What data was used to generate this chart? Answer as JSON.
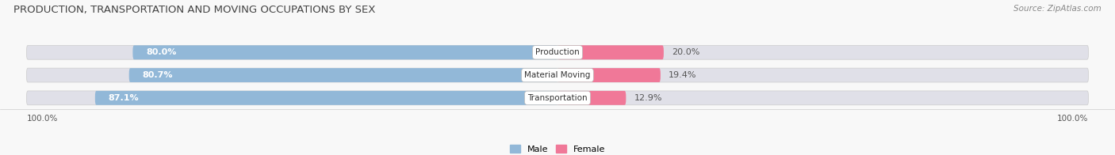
{
  "title": "PRODUCTION, TRANSPORTATION AND MOVING OCCUPATIONS BY SEX",
  "source": "Source: ZipAtlas.com",
  "categories": [
    "Transportation",
    "Material Moving",
    "Production"
  ],
  "male_pct": [
    87.1,
    80.7,
    80.0
  ],
  "female_pct": [
    12.9,
    19.4,
    20.0
  ],
  "male_color": "#92b8d8",
  "female_color": "#f07898",
  "bar_bg_color": "#e0e0e8",
  "bg_color": "#f8f8f8",
  "title_fontsize": 9.5,
  "source_fontsize": 7.5,
  "label_fontsize": 8,
  "cat_fontsize": 7.5,
  "axis_label_fontsize": 7.5,
  "bar_height": 0.62,
  "x_left_label": "100.0%",
  "x_right_label": "100.0%"
}
